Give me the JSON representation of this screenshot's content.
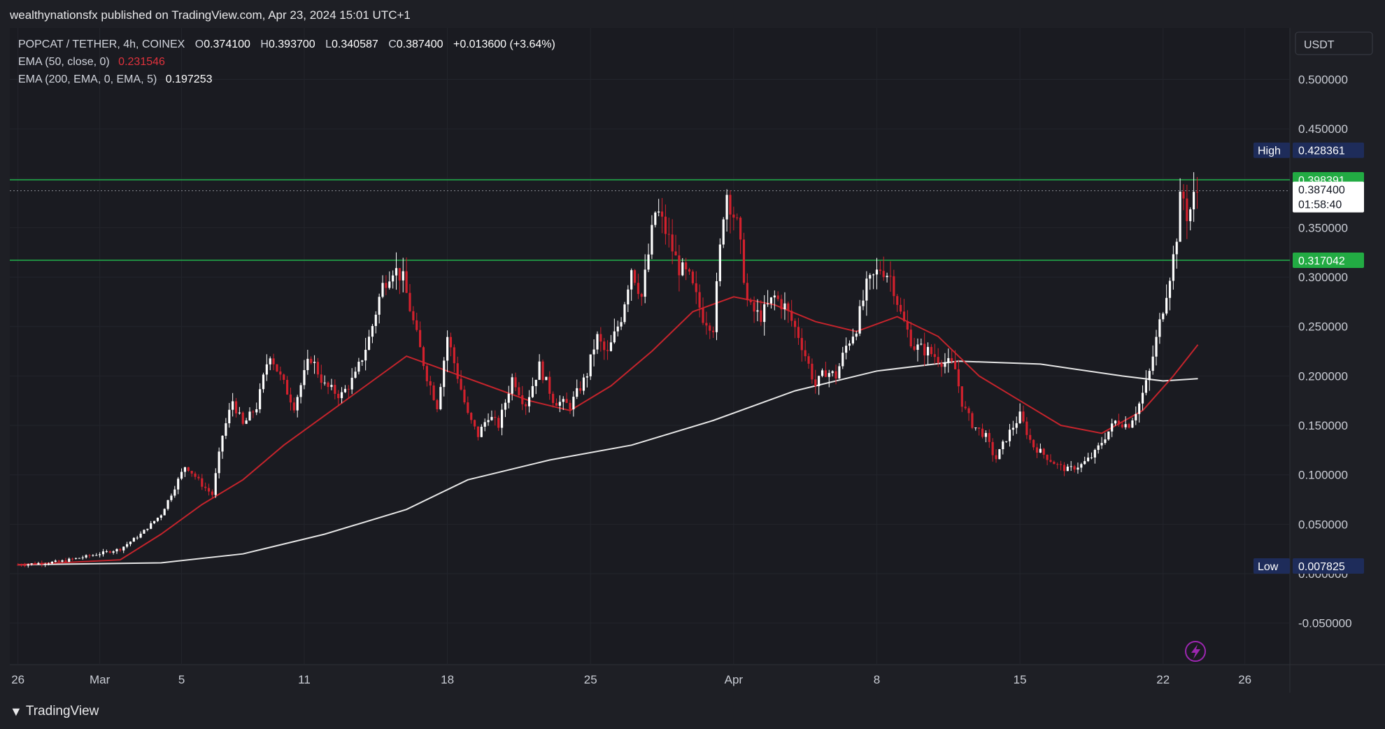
{
  "publisher_line": "wealthynationsfx published on TradingView.com, Apr 23, 2024 15:01 UTC+1",
  "legend": {
    "symbol": "POPCAT / TETHER, 4h, COINEX",
    "open_label": "O",
    "open": "0.374100",
    "high_label": "H",
    "high": "0.393700",
    "low_label": "L",
    "low": "0.340587",
    "close_label": "C",
    "close": "0.387400",
    "change": "+0.013600 (+3.64%)",
    "ema50_label": "EMA (50, close, 0)",
    "ema50_value": "0.231546",
    "ema200_label": "EMA (200, EMA, 0, EMA, 5)",
    "ema200_value": "0.197253"
  },
  "currency": "USDT",
  "brand": "TradingView",
  "icons": {
    "logo": "tradingview-logo-icon",
    "flash": "lightning-bolt-icon"
  },
  "colors": {
    "background": "#1e1f25",
    "bull": "#ffffff",
    "bear": "#d3212d",
    "ema50": "#c4242c",
    "ema200": "#e6e6e6",
    "level_line": "#22b14c",
    "label_green": "#22ab43",
    "label_navy": "#1e2c5a"
  },
  "chart_data": {
    "type": "candlestick",
    "y_axis_ticks": [
      "0.500000",
      "0.450000",
      "0.400000",
      "0.350000",
      "0.300000",
      "0.250000",
      "0.200000",
      "0.150000",
      "0.100000",
      "0.050000",
      "0.000000",
      "-0.050000"
    ],
    "y_tick_values": [
      0.5,
      0.45,
      0.4,
      0.35,
      0.3,
      0.25,
      0.2,
      0.15,
      0.1,
      0.05,
      0,
      -0.05
    ],
    "ylim": [
      -0.092,
      0.552
    ],
    "x_axis_labels": [
      {
        "label": "26",
        "day": 0
      },
      {
        "label": "Mar",
        "day": 4
      },
      {
        "label": "5",
        "day": 8
      },
      {
        "label": "11",
        "day": 14
      },
      {
        "label": "18",
        "day": 21
      },
      {
        "label": "25",
        "day": 28
      },
      {
        "label": "Apr",
        "day": 35
      },
      {
        "label": "8",
        "day": 42
      },
      {
        "label": "15",
        "day": 49
      },
      {
        "label": "22",
        "day": 56
      },
      {
        "label": "26",
        "day": 60
      }
    ],
    "xlim_days": [
      -0.4,
      62.2
    ],
    "horizontal_levels": [
      {
        "value": 0.398391,
        "label": "0.398391"
      },
      {
        "value": 0.317042,
        "label": "0.317042"
      }
    ],
    "current_price": {
      "value": 0.3874,
      "label": "0.387400",
      "countdown": "01:58:40"
    },
    "high_marker": {
      "label": "High",
      "value": 0.428361,
      "value_label": "0.428361"
    },
    "low_marker": {
      "label": "Low",
      "value": 0.007825,
      "value_label": "0.007825"
    },
    "price_path": [
      {
        "day": 0,
        "p": 0.009
      },
      {
        "day": 2,
        "p": 0.012
      },
      {
        "day": 3.5,
        "p": 0.018
      },
      {
        "day": 5,
        "p": 0.025
      },
      {
        "day": 6,
        "p": 0.04
      },
      {
        "day": 7,
        "p": 0.06
      },
      {
        "day": 7.6,
        "p": 0.085
      },
      {
        "day": 8.2,
        "p": 0.11
      },
      {
        "day": 9,
        "p": 0.09
      },
      {
        "day": 9.5,
        "p": 0.08
      },
      {
        "day": 10,
        "p": 0.14
      },
      {
        "day": 10.5,
        "p": 0.175
      },
      {
        "day": 11,
        "p": 0.15
      },
      {
        "day": 11.7,
        "p": 0.17
      },
      {
        "day": 12.3,
        "p": 0.225
      },
      {
        "day": 12.8,
        "p": 0.2
      },
      {
        "day": 13.5,
        "p": 0.17
      },
      {
        "day": 14.3,
        "p": 0.22
      },
      {
        "day": 15,
        "p": 0.19
      },
      {
        "day": 15.8,
        "p": 0.18
      },
      {
        "day": 16.5,
        "p": 0.2
      },
      {
        "day": 17.2,
        "p": 0.24
      },
      {
        "day": 17.8,
        "p": 0.29
      },
      {
        "day": 18.3,
        "p": 0.31
      },
      {
        "day": 18.8,
        "p": 0.3
      },
      {
        "day": 19.5,
        "p": 0.24
      },
      {
        "day": 20,
        "p": 0.2
      },
      {
        "day": 20.5,
        "p": 0.17
      },
      {
        "day": 21,
        "p": 0.24
      },
      {
        "day": 21.5,
        "p": 0.2
      },
      {
        "day": 22,
        "p": 0.16
      },
      {
        "day": 22.5,
        "p": 0.14
      },
      {
        "day": 23,
        "p": 0.16
      },
      {
        "day": 23.5,
        "p": 0.15
      },
      {
        "day": 24.2,
        "p": 0.2
      },
      {
        "day": 24.8,
        "p": 0.17
      },
      {
        "day": 25.5,
        "p": 0.21
      },
      {
        "day": 26.2,
        "p": 0.175
      },
      {
        "day": 27,
        "p": 0.17
      },
      {
        "day": 27.8,
        "p": 0.2
      },
      {
        "day": 28.3,
        "p": 0.24
      },
      {
        "day": 28.8,
        "p": 0.22
      },
      {
        "day": 29.5,
        "p": 0.26
      },
      {
        "day": 30,
        "p": 0.31
      },
      {
        "day": 30.5,
        "p": 0.28
      },
      {
        "day": 31.2,
        "p": 0.37
      },
      {
        "day": 31.8,
        "p": 0.34
      },
      {
        "day": 32.3,
        "p": 0.31
      },
      {
        "day": 32.8,
        "p": 0.3
      },
      {
        "day": 33.5,
        "p": 0.26
      },
      {
        "day": 34,
        "p": 0.25
      },
      {
        "day": 34.6,
        "p": 0.39
      },
      {
        "day": 35.2,
        "p": 0.35
      },
      {
        "day": 35.7,
        "p": 0.27
      },
      {
        "day": 36.3,
        "p": 0.26
      },
      {
        "day": 37,
        "p": 0.28
      },
      {
        "day": 37.5,
        "p": 0.27
      },
      {
        "day": 38.2,
        "p": 0.24
      },
      {
        "day": 39,
        "p": 0.19
      },
      {
        "day": 39.5,
        "p": 0.205
      },
      {
        "day": 40,
        "p": 0.2
      },
      {
        "day": 40.5,
        "p": 0.23
      },
      {
        "day": 41,
        "p": 0.25
      },
      {
        "day": 41.5,
        "p": 0.29
      },
      {
        "day": 42.2,
        "p": 0.31
      },
      {
        "day": 42.7,
        "p": 0.3
      },
      {
        "day": 43.2,
        "p": 0.26
      },
      {
        "day": 43.8,
        "p": 0.23
      },
      {
        "day": 44.5,
        "p": 0.225
      },
      {
        "day": 45.2,
        "p": 0.215
      },
      {
        "day": 45.8,
        "p": 0.21
      },
      {
        "day": 46.2,
        "p": 0.17
      },
      {
        "day": 46.7,
        "p": 0.15
      },
      {
        "day": 47.3,
        "p": 0.14
      },
      {
        "day": 47.8,
        "p": 0.115
      },
      {
        "day": 48.4,
        "p": 0.14
      },
      {
        "day": 49,
        "p": 0.16
      },
      {
        "day": 49.6,
        "p": 0.13
      },
      {
        "day": 50.2,
        "p": 0.12
      },
      {
        "day": 50.8,
        "p": 0.11
      },
      {
        "day": 51.3,
        "p": 0.105
      },
      {
        "day": 52,
        "p": 0.11
      },
      {
        "day": 52.6,
        "p": 0.12
      },
      {
        "day": 53.2,
        "p": 0.14
      },
      {
        "day": 53.7,
        "p": 0.155
      },
      {
        "day": 54.3,
        "p": 0.15
      },
      {
        "day": 54.8,
        "p": 0.17
      },
      {
        "day": 55.3,
        "p": 0.2
      },
      {
        "day": 55.8,
        "p": 0.25
      },
      {
        "day": 56.2,
        "p": 0.29
      },
      {
        "day": 56.6,
        "p": 0.33
      },
      {
        "day": 56.9,
        "p": 0.39
      },
      {
        "day": 57.2,
        "p": 0.36
      },
      {
        "day": 57.5,
        "p": 0.38
      },
      {
        "day": 57.7,
        "p": 0.3874
      }
    ],
    "ema50": [
      {
        "day": 0,
        "p": 0.009
      },
      {
        "day": 5,
        "p": 0.014
      },
      {
        "day": 7,
        "p": 0.04
      },
      {
        "day": 9,
        "p": 0.07
      },
      {
        "day": 11,
        "p": 0.095
      },
      {
        "day": 13,
        "p": 0.13
      },
      {
        "day": 15,
        "p": 0.16
      },
      {
        "day": 17,
        "p": 0.19
      },
      {
        "day": 19,
        "p": 0.22
      },
      {
        "day": 21,
        "p": 0.205
      },
      {
        "day": 23,
        "p": 0.19
      },
      {
        "day": 25,
        "p": 0.175
      },
      {
        "day": 27,
        "p": 0.165
      },
      {
        "day": 29,
        "p": 0.19
      },
      {
        "day": 31,
        "p": 0.225
      },
      {
        "day": 33,
        "p": 0.265
      },
      {
        "day": 35,
        "p": 0.28
      },
      {
        "day": 37,
        "p": 0.272
      },
      {
        "day": 39,
        "p": 0.255
      },
      {
        "day": 41,
        "p": 0.245
      },
      {
        "day": 43,
        "p": 0.26
      },
      {
        "day": 45,
        "p": 0.24
      },
      {
        "day": 47,
        "p": 0.2
      },
      {
        "day": 49,
        "p": 0.175
      },
      {
        "day": 51,
        "p": 0.15
      },
      {
        "day": 53,
        "p": 0.142
      },
      {
        "day": 55,
        "p": 0.165
      },
      {
        "day": 56.5,
        "p": 0.2
      },
      {
        "day": 57.7,
        "p": 0.231546
      }
    ],
    "ema200": [
      {
        "day": 0,
        "p": 0.009
      },
      {
        "day": 7,
        "p": 0.011
      },
      {
        "day": 11,
        "p": 0.02
      },
      {
        "day": 15,
        "p": 0.04
      },
      {
        "day": 19,
        "p": 0.065
      },
      {
        "day": 22,
        "p": 0.095
      },
      {
        "day": 26,
        "p": 0.115
      },
      {
        "day": 30,
        "p": 0.13
      },
      {
        "day": 34,
        "p": 0.155
      },
      {
        "day": 38,
        "p": 0.185
      },
      {
        "day": 42,
        "p": 0.205
      },
      {
        "day": 46,
        "p": 0.215
      },
      {
        "day": 50,
        "p": 0.212
      },
      {
        "day": 54,
        "p": 0.2
      },
      {
        "day": 56,
        "p": 0.195
      },
      {
        "day": 57.7,
        "p": 0.197253
      }
    ],
    "candles_per_day": 6,
    "price_noise": 0.012
  }
}
